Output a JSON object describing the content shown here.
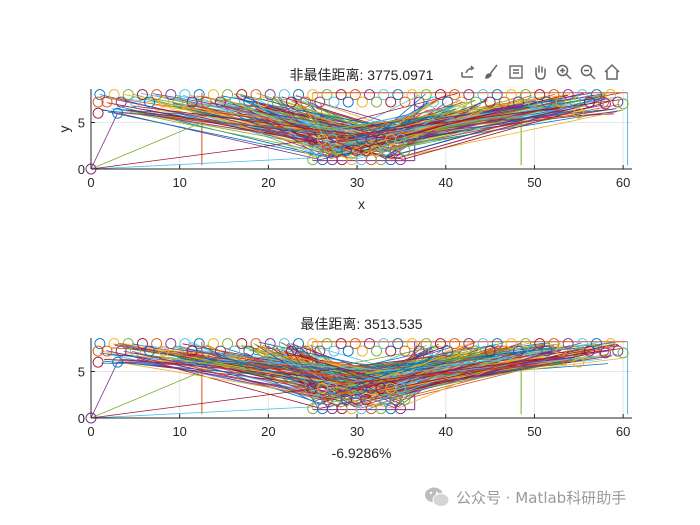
{
  "toolbar": {
    "icons": [
      "export-icon",
      "brush-icon",
      "datatip-icon",
      "pan-icon",
      "zoom-in-icon",
      "zoom-out-icon",
      "home-icon"
    ]
  },
  "watermark": {
    "text": "公众号 · Matlab科研助手"
  },
  "chart_data": [
    {
      "type": "line",
      "title": "非最佳距离: 3775.0971",
      "xlabel": "x",
      "ylabel": "y",
      "xlim": [
        0,
        61
      ],
      "ylim": [
        0,
        8.6
      ],
      "xticks": [
        0,
        10,
        20,
        30,
        40,
        50,
        60
      ],
      "yticks": [
        0,
        5
      ],
      "grid": true,
      "markers": "circle",
      "stations": [
        0,
        12.5,
        25,
        36.5,
        48.5,
        60.5
      ],
      "lower_band": [
        1,
        2.5
      ],
      "summary_note": "many route polylines between nodes at x≈0,3,7–27 (top), 25–36 (bottom), 37–60 (top)"
    },
    {
      "type": "line",
      "title": "最佳距离: 3513.535",
      "xlabel": "-6.9286%",
      "ylabel": "",
      "xlim": [
        0,
        61
      ],
      "ylim": [
        0,
        8.6
      ],
      "xticks": [
        0,
        10,
        20,
        30,
        40,
        50,
        60
      ],
      "yticks": [
        0,
        5
      ],
      "grid": true,
      "markers": "circle",
      "stations": [
        0,
        12.5,
        25,
        36.5,
        48.5,
        60.5
      ],
      "lower_band": [
        1,
        2.5
      ],
      "summary_note": "many route polylines between nodes at x≈0,3,7–27 (top), 25–36 (bottom), 37–60 (top)"
    }
  ]
}
